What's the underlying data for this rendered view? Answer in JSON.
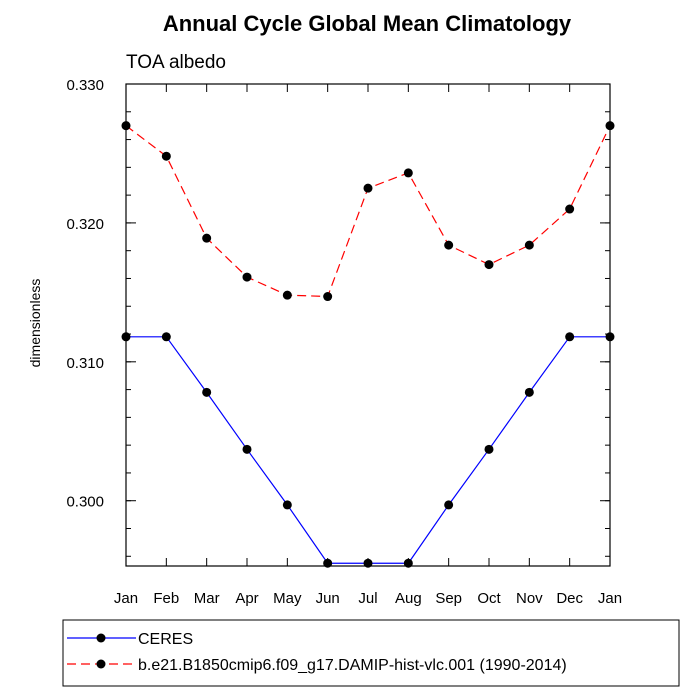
{
  "chart_data": {
    "type": "line",
    "title": "Annual Cycle Global Mean Climatology",
    "subtitle": "TOA albedo",
    "ylabel": "dimensionless",
    "xlabel": "",
    "categories": [
      "Jan",
      "Feb",
      "Mar",
      "Apr",
      "May",
      "Jun",
      "Jul",
      "Aug",
      "Sep",
      "Oct",
      "Nov",
      "Dec",
      "Jan"
    ],
    "ylim": [
      0.2953,
      0.33
    ],
    "yticks": [
      {
        "value": 0.3,
        "label": "0.300"
      },
      {
        "value": 0.31,
        "label": "0.310"
      },
      {
        "value": 0.32,
        "label": "0.320"
      },
      {
        "value": 0.33,
        "label": "0.330"
      }
    ],
    "minor_tick_step": 0.002,
    "grid": false,
    "legend_placement": "bottom",
    "series": [
      {
        "name": "CERES",
        "color": "#0000ff",
        "dash": "solid",
        "values": [
          0.3118,
          0.3118,
          0.3078,
          0.3037,
          0.2997,
          0.2955,
          0.2955,
          0.2955,
          0.2997,
          0.3037,
          0.3078,
          0.3118,
          0.3118
        ]
      },
      {
        "name": "b.e21.B1850cmip6.f09_g17.DAMIP-hist-vlc.001 (1990-2014)",
        "color": "#ff0000",
        "dash": "dashed",
        "values": [
          0.327,
          0.3248,
          0.3189,
          0.3161,
          0.3148,
          0.3147,
          0.3225,
          0.3236,
          0.3184,
          0.317,
          0.3184,
          0.321,
          0.327
        ]
      }
    ]
  }
}
